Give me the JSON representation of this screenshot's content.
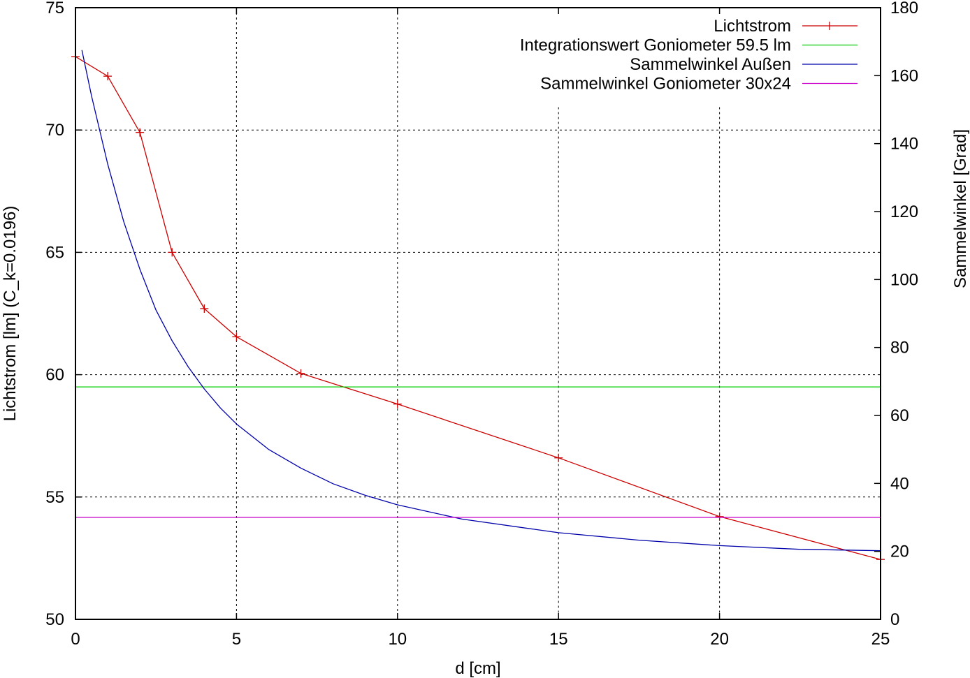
{
  "chart_data": {
    "type": "line",
    "title": "",
    "xlabel": "d [cm]",
    "ylabel": "Lichtstrom [lm] (C_k=0.0196)",
    "y2label": "Sammelwinkel [Grad]",
    "xlim": [
      0,
      25
    ],
    "ylim": [
      50,
      75
    ],
    "y2lim": [
      0,
      180
    ],
    "x_ticks": [
      0,
      5,
      10,
      15,
      20,
      25
    ],
    "y_ticks": [
      50,
      55,
      60,
      65,
      70,
      75
    ],
    "y2_ticks": [
      0,
      20,
      40,
      60,
      80,
      100,
      120,
      140,
      160,
      180
    ],
    "grid": true,
    "legend_position": "top-right",
    "series": [
      {
        "name": "Lichtstrom",
        "axis": "y",
        "color": "#cc0000",
        "marker": "plus",
        "x": [
          0,
          1,
          2,
          3,
          4,
          5,
          7,
          10,
          15,
          20,
          25
        ],
        "y": [
          73.0,
          72.2,
          69.9,
          65.0,
          62.7,
          61.55,
          60.05,
          58.8,
          56.6,
          54.2,
          52.45
        ]
      },
      {
        "name": "Integrationswert Goniometer 59.5 lm",
        "axis": "y",
        "color": "#00cc00",
        "marker": "none",
        "x": [
          0,
          25
        ],
        "y": [
          59.5,
          59.5
        ]
      },
      {
        "name": "Sammelwinkel Außen",
        "axis": "y2",
        "color": "#0000aa",
        "marker": "none",
        "x": [
          0.2,
          0.5,
          1,
          1.5,
          2,
          2.5,
          3,
          3.5,
          4,
          4.5,
          5,
          6,
          7,
          8,
          9,
          10,
          12,
          15,
          17.5,
          20,
          22.5,
          25
        ],
        "y": [
          167.5,
          154,
          134,
          117,
          103,
          91,
          82,
          74.3,
          67.8,
          62.2,
          57.5,
          50,
          44.5,
          39.9,
          36.5,
          33.7,
          29.5,
          25.5,
          23.3,
          21.7,
          20.6,
          20.2
        ]
      },
      {
        "name": "Sammelwinkel Goniometer 30x24",
        "axis": "y2",
        "color": "#cc00cc",
        "marker": "none",
        "x": [
          0,
          25
        ],
        "y": [
          30,
          30
        ]
      }
    ]
  }
}
